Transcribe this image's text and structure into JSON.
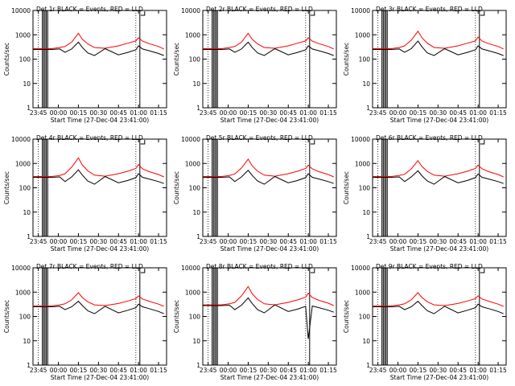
{
  "chart_data": [
    {
      "type": "line",
      "title": "Det 1r BLACK = Events, RED = LLD",
      "xlabel": "Start Time (27-Dec-04 23:41:00)",
      "ylabel": "Counts/sec",
      "x_ticks": [
        "23:45",
        "00:00",
        "00:15",
        "00:30",
        "00:45",
        "01:00",
        "01:15"
      ],
      "y_ticks": [
        "1",
        "10",
        "100",
        "1000",
        "10000"
      ],
      "ylim": [
        1,
        10000
      ],
      "yscale": "log",
      "grid": false,
      "series": [
        {
          "color": "#ff0000",
          "x": [
            "23:41",
            "23:55",
            "00:01",
            "00:05",
            "00:10",
            "00:15",
            "00:18",
            "00:22",
            "00:27",
            "00:35",
            "00:45",
            "00:52",
            "00:58",
            "01:00",
            "01:03",
            "01:08",
            "01:15",
            "01:19"
          ],
          "values": [
            270,
            270,
            300,
            330,
            500,
            1150,
            650,
            420,
            300,
            280,
            350,
            450,
            560,
            750,
            550,
            430,
            330,
            260
          ]
        },
        {
          "color": "#000000",
          "x": [
            "23:41",
            "23:55",
            "00:01",
            "00:05",
            "00:10",
            "00:15",
            "00:18",
            "00:22",
            "00:27",
            "00:35",
            "00:45",
            "00:52",
            "00:58",
            "01:00",
            "01:03",
            "01:08",
            "01:15",
            "01:19"
          ],
          "values": [
            250,
            250,
            260,
            190,
            260,
            500,
            300,
            180,
            140,
            270,
            150,
            190,
            240,
            350,
            260,
            220,
            170,
            140
          ]
        }
      ]
    },
    {
      "type": "line",
      "title": "Det 2r BLACK = Events, RED = LLD",
      "xlabel": "Start Time (27-Dec-04 23:41:00)",
      "ylabel": "Counts/sec",
      "x_ticks": [
        "23:45",
        "00:00",
        "00:15",
        "00:30",
        "00:45",
        "01:00",
        "01:15"
      ],
      "y_ticks": [
        "1",
        "10",
        "100",
        "1000",
        "10000"
      ],
      "ylim": [
        1,
        10000
      ],
      "yscale": "log",
      "grid": false,
      "series": [
        {
          "color": "#ff0000",
          "x": [
            "23:41",
            "23:55",
            "00:01",
            "00:05",
            "00:10",
            "00:15",
            "00:18",
            "00:22",
            "00:27",
            "00:35",
            "00:45",
            "00:52",
            "00:58",
            "01:00",
            "01:03",
            "01:08",
            "01:15",
            "01:19"
          ],
          "values": [
            270,
            270,
            300,
            330,
            500,
            1150,
            650,
            420,
            300,
            280,
            350,
            450,
            560,
            750,
            550,
            430,
            330,
            260
          ]
        },
        {
          "color": "#000000",
          "x": [
            "23:41",
            "23:55",
            "00:01",
            "00:05",
            "00:10",
            "00:15",
            "00:18",
            "00:22",
            "00:27",
            "00:35",
            "00:45",
            "00:52",
            "00:58",
            "01:00",
            "01:03",
            "01:08",
            "01:15",
            "01:19"
          ],
          "values": [
            250,
            250,
            260,
            190,
            260,
            500,
            300,
            180,
            140,
            270,
            150,
            190,
            240,
            350,
            260,
            220,
            170,
            140
          ]
        }
      ]
    },
    {
      "type": "line",
      "title": "Det 3r BLACK = Events, RED = LLD",
      "xlabel": "Start Time (27-Dec-04 23:41:00)",
      "ylabel": "Counts/sec",
      "x_ticks": [
        "23:45",
        "00:00",
        "00:15",
        "00:30",
        "00:45",
        "01:00",
        "01:15"
      ],
      "y_ticks": [
        "1",
        "10",
        "100",
        "1000",
        "10000"
      ],
      "ylim": [
        1,
        10000
      ],
      "yscale": "log",
      "grid": false,
      "series": [
        {
          "color": "#ff0000",
          "x": [
            "23:41",
            "23:55",
            "00:01",
            "00:05",
            "00:10",
            "00:15",
            "00:18",
            "00:22",
            "00:27",
            "00:35",
            "00:45",
            "00:52",
            "00:58",
            "01:00",
            "01:03",
            "01:08",
            "01:15",
            "01:19"
          ],
          "values": [
            270,
            270,
            300,
            350,
            600,
            1400,
            750,
            450,
            300,
            280,
            350,
            450,
            560,
            800,
            550,
            430,
            330,
            260
          ]
        },
        {
          "color": "#000000",
          "x": [
            "23:41",
            "23:55",
            "00:01",
            "00:05",
            "00:10",
            "00:15",
            "00:18",
            "00:22",
            "00:27",
            "00:35",
            "00:45",
            "00:52",
            "00:58",
            "01:00",
            "01:03",
            "01:08",
            "01:15",
            "01:19"
          ],
          "values": [
            250,
            250,
            260,
            190,
            270,
            550,
            320,
            180,
            140,
            270,
            150,
            190,
            240,
            350,
            260,
            220,
            170,
            140
          ]
        }
      ]
    },
    {
      "type": "line",
      "title": "Det 4r BLACK = Events, RED = LLD",
      "xlabel": "Start Time (27-Dec-04 23:41:00)",
      "ylabel": "Counts/sec",
      "x_ticks": [
        "23:45",
        "00:00",
        "00:15",
        "00:30",
        "00:45",
        "01:00",
        "01:15"
      ],
      "y_ticks": [
        "1",
        "10",
        "100",
        "1000",
        "10000"
      ],
      "ylim": [
        1,
        10000
      ],
      "yscale": "log",
      "grid": false,
      "series": [
        {
          "color": "#ff0000",
          "x": [
            "23:41",
            "23:55",
            "00:01",
            "00:05",
            "00:10",
            "00:15",
            "00:18",
            "00:22",
            "00:27",
            "00:35",
            "00:45",
            "00:52",
            "00:58",
            "01:00",
            "01:03",
            "01:08",
            "01:15",
            "01:19"
          ],
          "values": [
            290,
            290,
            320,
            380,
            700,
            1700,
            850,
            500,
            330,
            300,
            380,
            480,
            620,
            900,
            600,
            460,
            350,
            280
          ]
        },
        {
          "color": "#000000",
          "x": [
            "23:41",
            "23:55",
            "00:01",
            "00:05",
            "00:10",
            "00:15",
            "00:18",
            "00:22",
            "00:27",
            "00:35",
            "00:45",
            "00:52",
            "00:58",
            "01:00",
            "01:03",
            "01:08",
            "01:15",
            "01:19"
          ],
          "values": [
            270,
            270,
            280,
            180,
            280,
            550,
            330,
            190,
            140,
            290,
            160,
            200,
            260,
            380,
            270,
            230,
            180,
            150
          ]
        }
      ]
    },
    {
      "type": "line",
      "title": "Det 5r BLACK = Events, RED = LLD",
      "xlabel": "Start Time (27-Dec-04 23:41:00)",
      "ylabel": "Counts/sec",
      "x_ticks": [
        "23:45",
        "00:00",
        "00:15",
        "00:30",
        "00:45",
        "01:00",
        "01:15"
      ],
      "y_ticks": [
        "1",
        "10",
        "100",
        "1000",
        "10000"
      ],
      "ylim": [
        1,
        10000
      ],
      "yscale": "log",
      "grid": false,
      "series": [
        {
          "color": "#ff0000",
          "x": [
            "23:41",
            "23:55",
            "00:01",
            "00:05",
            "00:10",
            "00:15",
            "00:18",
            "00:22",
            "00:27",
            "00:35",
            "00:45",
            "00:52",
            "00:58",
            "01:00",
            "01:03",
            "01:08",
            "01:15",
            "01:19"
          ],
          "values": [
            290,
            290,
            320,
            370,
            650,
            1500,
            800,
            480,
            330,
            300,
            380,
            480,
            620,
            850,
            600,
            460,
            350,
            280
          ]
        },
        {
          "color": "#000000",
          "x": [
            "23:41",
            "23:55",
            "00:01",
            "00:05",
            "00:10",
            "00:15",
            "00:18",
            "00:22",
            "00:27",
            "00:35",
            "00:45",
            "00:52",
            "00:58",
            "01:00",
            "01:03",
            "01:08",
            "01:15",
            "01:19"
          ],
          "values": [
            270,
            270,
            280,
            180,
            280,
            520,
            320,
            190,
            140,
            290,
            160,
            200,
            260,
            380,
            270,
            230,
            180,
            150
          ]
        }
      ]
    },
    {
      "type": "line",
      "title": "Det 6r BLACK = Events, RED = LLD",
      "xlabel": "Start Time (27-Dec-04 23:41:00)",
      "ylabel": "Counts/sec",
      "x_ticks": [
        "23:45",
        "00:00",
        "00:15",
        "00:30",
        "00:45",
        "01:00",
        "01:15"
      ],
      "y_ticks": [
        "1",
        "10",
        "100",
        "1000",
        "10000"
      ],
      "ylim": [
        1,
        10000
      ],
      "yscale": "log",
      "grid": false,
      "series": [
        {
          "color": "#ff0000",
          "x": [
            "23:41",
            "23:55",
            "00:01",
            "00:05",
            "00:10",
            "00:15",
            "00:18",
            "00:22",
            "00:27",
            "00:35",
            "00:45",
            "00:52",
            "00:58",
            "01:00",
            "01:03",
            "01:08",
            "01:15",
            "01:19"
          ],
          "values": [
            290,
            290,
            320,
            360,
            600,
            1300,
            750,
            470,
            330,
            300,
            380,
            480,
            620,
            850,
            600,
            460,
            350,
            280
          ]
        },
        {
          "color": "#000000",
          "x": [
            "23:41",
            "23:55",
            "00:01",
            "00:05",
            "00:10",
            "00:15",
            "00:18",
            "00:22",
            "00:27",
            "00:35",
            "00:45",
            "00:52",
            "00:58",
            "01:00",
            "01:03",
            "01:08",
            "01:15",
            "01:19"
          ],
          "values": [
            270,
            270,
            280,
            180,
            280,
            500,
            310,
            190,
            140,
            290,
            160,
            200,
            260,
            370,
            270,
            230,
            180,
            150
          ]
        }
      ]
    },
    {
      "type": "line",
      "title": "Det 7r BLACK = Events, RED = LLD",
      "xlabel": "Start Time (27-Dec-04 23:41:00)",
      "ylabel": "Counts/sec",
      "x_ticks": [
        "23:45",
        "00:00",
        "00:15",
        "00:30",
        "00:45",
        "01:00",
        "01:15"
      ],
      "y_ticks": [
        "1",
        "10",
        "100",
        "1000",
        "10000"
      ],
      "ylim": [
        1,
        10000
      ],
      "yscale": "log",
      "grid": false,
      "series": [
        {
          "color": "#ff0000",
          "x": [
            "23:41",
            "23:55",
            "00:01",
            "00:05",
            "00:10",
            "00:15",
            "00:18",
            "00:22",
            "00:27",
            "00:35",
            "00:45",
            "00:52",
            "00:58",
            "01:00",
            "01:03",
            "01:08",
            "01:15",
            "01:19"
          ],
          "values": [
            270,
            270,
            300,
            330,
            480,
            950,
            600,
            400,
            300,
            280,
            340,
            430,
            540,
            700,
            520,
            420,
            320,
            260
          ]
        },
        {
          "color": "#000000",
          "x": [
            "23:41",
            "23:55",
            "00:01",
            "00:05",
            "00:10",
            "00:15",
            "00:18",
            "00:22",
            "00:27",
            "00:35",
            "00:45",
            "00:52",
            "00:58",
            "01:00",
            "01:03",
            "01:08",
            "01:15",
            "01:19"
          ],
          "values": [
            250,
            250,
            260,
            190,
            250,
            420,
            280,
            170,
            130,
            260,
            140,
            180,
            230,
            320,
            250,
            210,
            160,
            130
          ]
        }
      ]
    },
    {
      "type": "line",
      "title": "Det 8r BLACK = Events, RED = LLD",
      "xlabel": "Start Time (27-Dec-04 23:41:00)",
      "ylabel": "Counts/sec",
      "x_ticks": [
        "23:45",
        "00:00",
        "00:15",
        "00:30",
        "00:45",
        "01:00",
        "01:15"
      ],
      "y_ticks": [
        "1",
        "10",
        "100",
        "1000",
        "10000"
      ],
      "ylim": [
        1,
        10000
      ],
      "yscale": "log",
      "grid": false,
      "series": [
        {
          "color": "#ff0000",
          "x": [
            "23:41",
            "23:55",
            "00:01",
            "00:05",
            "00:10",
            "00:15",
            "00:18",
            "00:22",
            "00:27",
            "00:35",
            "00:45",
            "00:52",
            "00:58",
            "01:00",
            "01:03",
            "01:08",
            "01:15",
            "01:19"
          ],
          "values": [
            300,
            300,
            330,
            380,
            700,
            1700,
            850,
            500,
            330,
            300,
            380,
            480,
            620,
            900,
            600,
            460,
            350,
            280
          ]
        },
        {
          "color": "#000000",
          "x": [
            "23:41",
            "23:55",
            "00:01",
            "00:05",
            "00:10",
            "00:15",
            "00:18",
            "00:22",
            "00:27",
            "00:35",
            "00:45",
            "00:52",
            "00:58",
            "01:00",
            "01:03",
            "01:08",
            "01:15",
            "01:19"
          ],
          "values": [
            280,
            280,
            290,
            190,
            290,
            580,
            340,
            190,
            140,
            300,
            160,
            200,
            260,
            12,
            270,
            230,
            180,
            150
          ]
        }
      ]
    },
    {
      "type": "line",
      "title": "Det 9r BLACK = Events, RED = LLD",
      "xlabel": "Start Time (27-Dec-04 23:41:00)",
      "ylabel": "Counts/sec",
      "x_ticks": [
        "23:45",
        "00:00",
        "00:15",
        "00:30",
        "00:45",
        "01:00",
        "01:15"
      ],
      "y_ticks": [
        "1",
        "10",
        "100",
        "1000",
        "10000"
      ],
      "ylim": [
        1,
        10000
      ],
      "yscale": "log",
      "grid": false,
      "series": [
        {
          "color": "#ff0000",
          "x": [
            "23:41",
            "23:55",
            "00:01",
            "00:05",
            "00:10",
            "00:15",
            "00:18",
            "00:22",
            "00:27",
            "00:35",
            "00:45",
            "00:52",
            "00:58",
            "01:00",
            "01:03",
            "01:08",
            "01:15",
            "01:19"
          ],
          "values": [
            270,
            270,
            300,
            330,
            480,
            950,
            600,
            400,
            300,
            280,
            340,
            430,
            540,
            700,
            520,
            420,
            320,
            260
          ]
        },
        {
          "color": "#000000",
          "x": [
            "23:41",
            "23:55",
            "00:01",
            "00:05",
            "00:10",
            "00:15",
            "00:18",
            "00:22",
            "00:27",
            "00:35",
            "00:45",
            "00:52",
            "00:58",
            "01:00",
            "01:03",
            "01:08",
            "01:15",
            "01:19"
          ],
          "values": [
            250,
            250,
            260,
            190,
            250,
            420,
            280,
            170,
            130,
            260,
            140,
            180,
            230,
            320,
            250,
            210,
            160,
            130
          ]
        }
      ]
    }
  ]
}
